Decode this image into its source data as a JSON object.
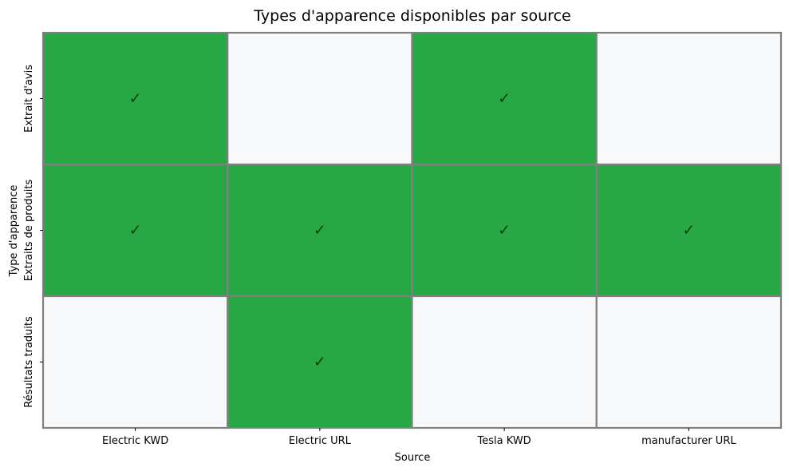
{
  "chart_data": {
    "type": "heatmap",
    "title": "Types d'apparence disponibles par source",
    "xlabel": "Source",
    "ylabel": "Type d'apparence",
    "x_categories": [
      "Electric KWD",
      "Electric URL",
      "Tesla KWD",
      "manufacturer URL"
    ],
    "y_categories": [
      "Extrait d'avis",
      "Extraits de produits",
      "Résultats traduits"
    ],
    "values": [
      [
        1,
        0,
        1,
        0
      ],
      [
        1,
        1,
        1,
        1
      ],
      [
        0,
        1,
        0,
        0
      ]
    ],
    "cell_label": "✓",
    "colors": {
      "available": "#28a745",
      "unavailable": "#f7f8fa",
      "cell_border": "#808080",
      "check": "#0b3d12"
    },
    "legend": "none",
    "grid": false
  }
}
